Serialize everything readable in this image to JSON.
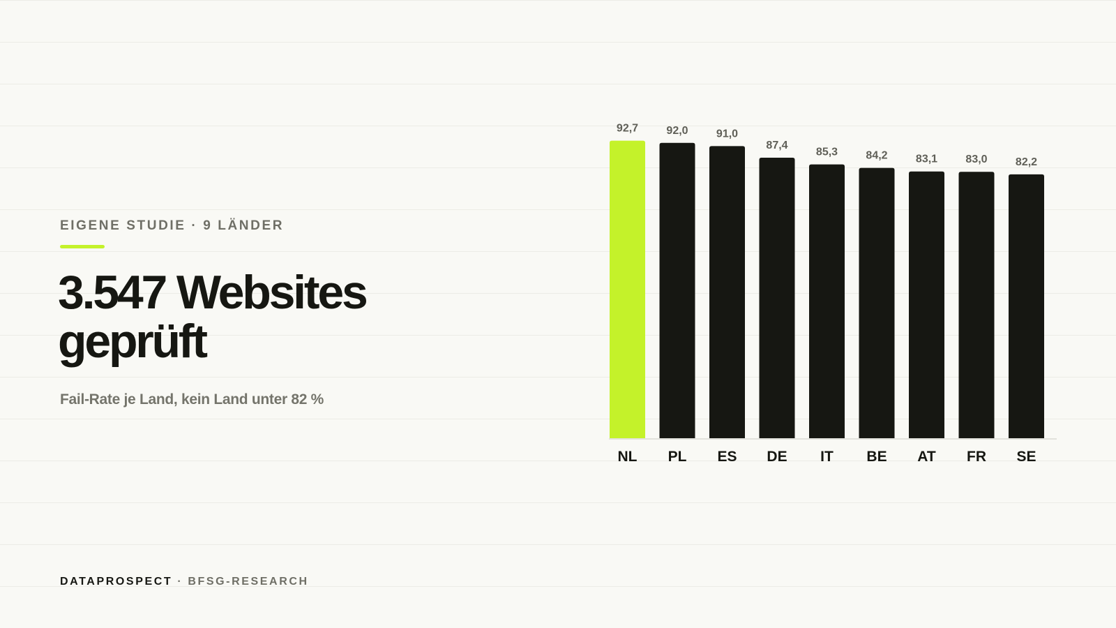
{
  "eyebrow": {
    "text": "EIGENE STUDIE · 9 LÄNDER"
  },
  "headline": {
    "line1": "3.547 Websites",
    "line2": "geprüft"
  },
  "subtitle": "Fail-Rate je Land, kein Land unter 82 %",
  "footer": {
    "brand": "DATAPROSPECT",
    "separator": " · ",
    "department": "BFSG-RESEARCH"
  },
  "colors": {
    "background": "#f9f9f5",
    "accent": "#c4f22a",
    "bar_default": "#161712",
    "text_muted": "#6f6f66",
    "baseline": "#e2e2dc"
  },
  "chart_data": {
    "type": "bar",
    "categories": [
      "NL",
      "PL",
      "ES",
      "DE",
      "IT",
      "BE",
      "AT",
      "FR",
      "SE"
    ],
    "values": [
      92.7,
      92.0,
      91.0,
      87.4,
      85.3,
      84.2,
      83.1,
      83.0,
      82.2
    ],
    "value_labels": [
      "92,7",
      "92,0",
      "91,0",
      "87,4",
      "85,3",
      "84,2",
      "83,1",
      "83,0",
      "82,2"
    ],
    "highlight_index": 0,
    "ylim": [
      0,
      100
    ],
    "grid": false,
    "legend": "none"
  }
}
